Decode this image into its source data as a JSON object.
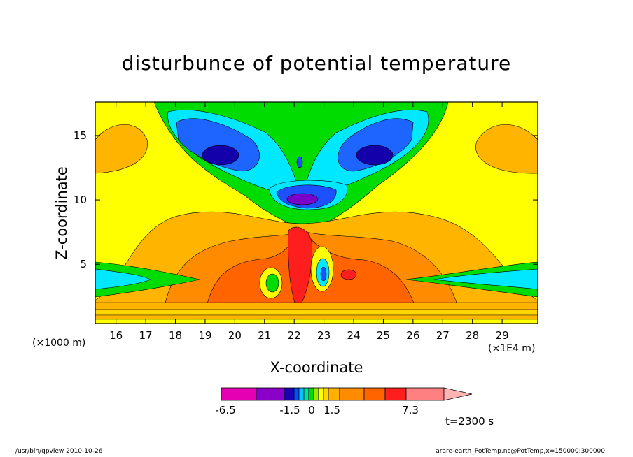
{
  "chart_data": {
    "type": "heatmap",
    "title": "disturbunce of potential temperature",
    "xlabel": "X-coordinate",
    "ylabel": "Z-coordinate",
    "x_unit_left": "(×1000 m)",
    "x_unit_right": "(×1E4 m)",
    "x_ticks": [
      "16",
      "17",
      "18",
      "19",
      "20",
      "21",
      "22",
      "23",
      "24",
      "25",
      "26",
      "27",
      "28",
      "29"
    ],
    "y_ticks": [
      "5",
      "10",
      "15"
    ],
    "xlim": [
      15.3,
      30.2
    ],
    "ylim": [
      0.4,
      17.6
    ],
    "colorbar": {
      "labels": [
        "-6.5",
        "-1.5",
        "0",
        "1.5",
        "7.3"
      ],
      "colors": [
        "#e600b4",
        "#8a00c8",
        "#1e00b4",
        "#0050ff",
        "#00c8ff",
        "#00e0a0",
        "#00dc00",
        "#a0e600",
        "#ffff00",
        "#ffd700",
        "#ffb000",
        "#ff8c00",
        "#ff6400",
        "#ff1e1e",
        "#ff8080",
        "#ffb4b4"
      ]
    },
    "time_label": "t=2300 s"
  },
  "footer": {
    "left": "/usr/bin/gpview   2010-10-26",
    "right": "arare-earth_PotTemp.nc@PotTemp,x=150000:300000"
  }
}
